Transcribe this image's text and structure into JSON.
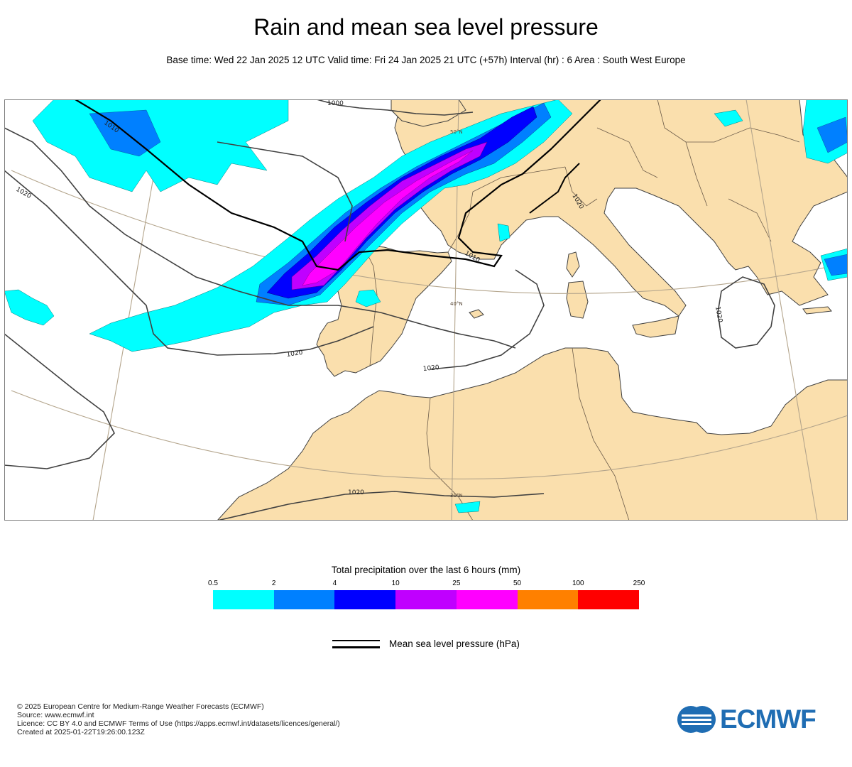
{
  "header": {
    "title": "Rain and mean sea level pressure",
    "subtitle": "Base time: Wed 22 Jan 2025 12 UTC Valid time: Fri 24 Jan 2025 21 UTC (+57h) Interval (hr) : 6 Area : South West Europe"
  },
  "map": {
    "colors": {
      "land": "#fadfad",
      "sea": "#ffffff",
      "graticule": "#b4a58c",
      "border": "#5a4a3a",
      "isobar": "#404040"
    },
    "isobar_labels": [
      "1000",
      "1010",
      "1020",
      "1020",
      "1020",
      "1010",
      "1020",
      "1020",
      "1020"
    ],
    "lat_labels": [
      "50°N",
      "40°N",
      "30°N"
    ]
  },
  "legend": {
    "title": "Total precipitation over the last 6 hours (mm)",
    "ticks": [
      "0.5",
      "2",
      "4",
      "10",
      "25",
      "50",
      "100",
      "250"
    ],
    "colors": [
      "#00ffff",
      "#0080ff",
      "#0000ff",
      "#c000ff",
      "#ff00ff",
      "#ff8000",
      "#ff0000"
    ],
    "mslp_label": "Mean sea level pressure (hPa)"
  },
  "footer": {
    "lines": [
      "© 2025 European Centre for Medium-Range Weather Forecasts (ECMWF)",
      "Source: www.ecmwf.int",
      "Licence: CC BY 4.0 and ECMWF Terms of Use (https://apps.ecmwf.int/datasets/licences/general/)",
      "Created at 2025-01-22T19:26:00.123Z"
    ],
    "logo_text": "ECMWF"
  }
}
